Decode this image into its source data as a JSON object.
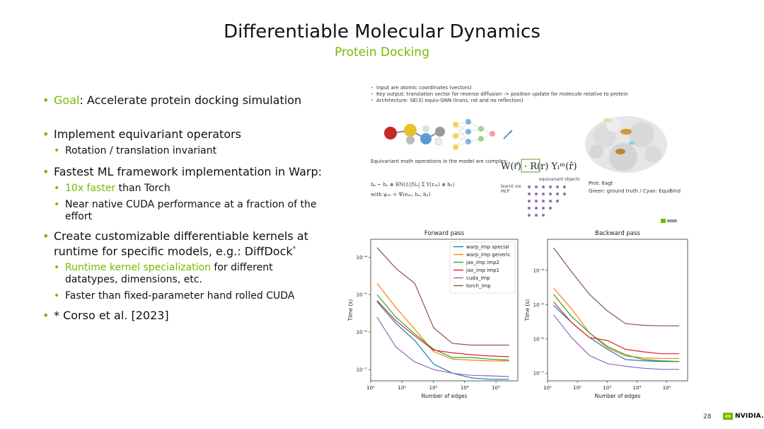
{
  "slide": {
    "title": "Differentiable Molecular Dynamics",
    "subtitle": "Protein Docking",
    "page_number": "28",
    "logo_text": "NVIDIA."
  },
  "bullets": {
    "goal_label": "Goal",
    "goal_text": ": Accelerate protein docking simulation",
    "equivariant": "Implement equivariant operators",
    "rotation": "Rotation / translation invariant",
    "fastest": "Fastest ML framework implementation in Warp:",
    "tenx_highlight": "10x faster",
    "tenx_rest": " than Torch",
    "near_native": "Near native CUDA performance at a fraction of the effort",
    "customizable": "Create customizable differentiable kernels at runtime for specific models, e.g.: DiffDock",
    "customizable_mark": "*",
    "runtime_highlight": "Runtime kernel specialization",
    "runtime_rest": " for different datatypes, dimensions, etc.",
    "faster_fixed": "Faster than fixed-parameter hand rolled CUDA",
    "citation": "* Corso et al. [2023]"
  },
  "figure": {
    "notes": [
      "Input are atomic coordinates (vectors)",
      "Key output: translation vector for reverse diffusion -> position update for molecule relative to protein",
      "Architecture: SE(3) equiv-GNN (trans, rot and no reflection)"
    ],
    "eq_caption": "Equivariant math operations in the model are complex:",
    "eq_main": "W(r⃗) · R(r) Yₗᵐ(r̂)",
    "eq_line1": "hₐ ← hₐ ⊕ BN(1/|Nₐ| Σ Y(rₐₕ) ⊗ hₕ)",
    "eq_line2": "with ψₐₕ = Ψ(eₐₕ, hₐ, hₕ)",
    "learnt_label": "learnt via MLP",
    "equivariant_objects": "equivariant objects",
    "prot_label": "Prot: 6agt",
    "prot_legend": "Green: ground truth / Cyan: EquiBind"
  },
  "chart_data": [
    {
      "type": "line",
      "title": "Forward pass",
      "xlabel": "Number of edges",
      "ylabel": "Time (s)",
      "log_x": true,
      "log_y": true,
      "xlim": [
        10,
        500000
      ],
      "ylim": [
        5e-08,
        0.0003
      ],
      "xticks": [
        "10¹",
        "10²",
        "10³",
        "10⁴",
        "10⁵"
      ],
      "yticks": [
        "10⁻⁷",
        "10⁻⁶",
        "10⁻⁵",
        "10⁻⁴"
      ],
      "legend_position": "top-right",
      "x": [
        16,
        64,
        256,
        1024,
        4096,
        16384,
        65536,
        262144
      ],
      "series": [
        {
          "name": "warp_imp special",
          "color": "#1f77b4",
          "values": [
            6.5e-06,
            1.7e-06,
            6e-07,
            1.4e-07,
            8e-08,
            6e-08,
            5.5e-08,
            5.5e-08
          ]
        },
        {
          "name": "warp_imp generic",
          "color": "#ff7f0e",
          "values": [
            2e-05,
            4.5e-06,
            1.2e-06,
            3e-07,
            1.9e-07,
            1.8e-07,
            1.7e-07,
            1.7e-07
          ]
        },
        {
          "name": "jax_imp imp2",
          "color": "#2ca02c",
          "values": [
            1e-05,
            2.5e-06,
            9e-07,
            3.5e-07,
            2.1e-07,
            2.1e-07,
            1.9e-07,
            1.8e-07
          ]
        },
        {
          "name": "jax_imp imp1",
          "color": "#d62728",
          "values": [
            7e-06,
            2e-06,
            8e-07,
            3.3e-07,
            2.8e-07,
            2.5e-07,
            2.3e-07,
            2.2e-07
          ]
        },
        {
          "name": "cuda_imp",
          "color": "#9467bd",
          "values": [
            2.5e-06,
            4e-07,
            1.6e-07,
            1e-07,
            8e-08,
            7e-08,
            6.8e-08,
            6.5e-08
          ]
        },
        {
          "name": "torch_imp",
          "color": "#8c564b",
          "values": [
            0.00018,
            5e-05,
            2e-05,
            1.3e-06,
            5e-07,
            4.5e-07,
            4.5e-07,
            4.5e-07
          ]
        }
      ]
    },
    {
      "type": "line",
      "title": "Backward pass",
      "xlabel": "Number of edges",
      "ylabel": "Time (s)",
      "log_x": true,
      "log_y": true,
      "xlim": [
        10,
        500000
      ],
      "ylim": [
        6e-08,
        0.0008
      ],
      "xticks": [
        "10¹",
        "10²",
        "10³",
        "10⁴",
        "10⁵"
      ],
      "yticks": [
        "10⁻⁷",
        "10⁻⁶",
        "10⁻⁵",
        "10⁻⁴"
      ],
      "x": [
        16,
        64,
        256,
        1024,
        4096,
        16384,
        65536,
        262144
      ],
      "series": [
        {
          "name": "warp_imp special",
          "color": "#1f77b4",
          "values": [
            9.5e-06,
            3e-06,
            1.1e-06,
            5e-07,
            2.5e-07,
            2.3e-07,
            2.2e-07,
            2.2e-07
          ]
        },
        {
          "name": "warp_imp generic",
          "color": "#ff7f0e",
          "values": [
            3e-05,
            7.5e-06,
            1.5e-06,
            5.5e-07,
            3.2e-07,
            2.8e-07,
            2.7e-07,
            2.7e-07
          ]
        },
        {
          "name": "jax_imp imp2",
          "color": "#2ca02c",
          "values": [
            2e-05,
            4.5e-06,
            1.5e-06,
            6e-07,
            3.5e-07,
            2.5e-07,
            2.3e-07,
            2.2e-07
          ]
        },
        {
          "name": "jax_imp imp1",
          "color": "#d62728",
          "values": [
            1.2e-05,
            3e-06,
            1.1e-06,
            9e-07,
            5e-07,
            4.2e-07,
            3.7e-07,
            3.7e-07
          ]
        },
        {
          "name": "cuda_imp",
          "color": "#9467bd",
          "values": [
            5e-06,
            1.1e-06,
            3.3e-07,
            1.9e-07,
            1.6e-07,
            1.4e-07,
            1.3e-07,
            1.3e-07
          ]
        },
        {
          "name": "torch_imp",
          "color": "#8c564b",
          "values": [
            0.00045,
            9e-05,
            2e-05,
            6.5e-06,
            2.8e-06,
            2.5e-06,
            2.4e-06,
            2.4e-06
          ]
        }
      ]
    }
  ]
}
